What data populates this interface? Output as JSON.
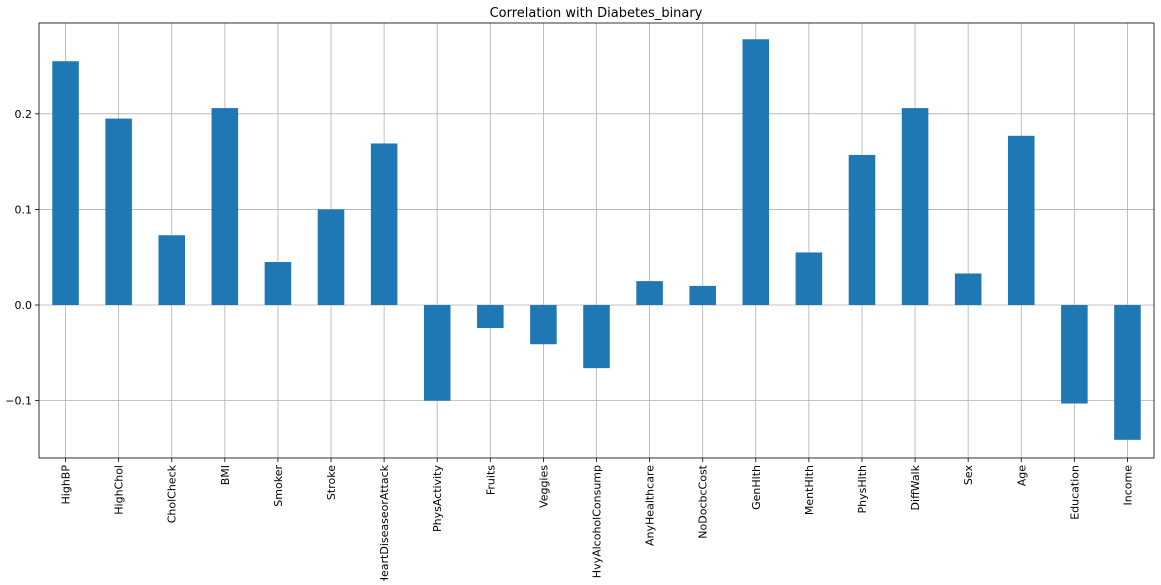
{
  "chart_data": {
    "type": "bar",
    "title": "Correlation with Diabetes_binary",
    "xlabel": "",
    "ylabel": "",
    "categories": [
      "HighBP",
      "HighChol",
      "CholCheck",
      "BMI",
      "Smoker",
      "Stroke",
      "HeartDiseaseorAttack",
      "PhysActivity",
      "Fruits",
      "Veggies",
      "HvyAlcoholConsump",
      "AnyHealthcare",
      "NoDocbcCost",
      "GenHlth",
      "MentHlth",
      "PhysHlth",
      "DiffWalk",
      "Sex",
      "Age",
      "Education",
      "Income"
    ],
    "values": [
      0.255,
      0.195,
      0.073,
      0.206,
      0.045,
      0.1,
      0.169,
      -0.1,
      -0.024,
      -0.041,
      -0.066,
      0.025,
      0.02,
      0.278,
      0.055,
      0.157,
      0.206,
      0.033,
      0.177,
      -0.103,
      -0.141
    ],
    "ylim": [
      -0.16,
      0.295
    ],
    "yticks": [
      -0.1,
      0.0,
      0.1,
      0.2
    ],
    "ytick_labels": [
      "−0.1",
      "0.0",
      "0.1",
      "0.2"
    ],
    "grid": true,
    "legend": "none",
    "colors": {
      "bar": "#1f77b4",
      "grid": "#b0b0b0",
      "axis": "#000000"
    }
  }
}
